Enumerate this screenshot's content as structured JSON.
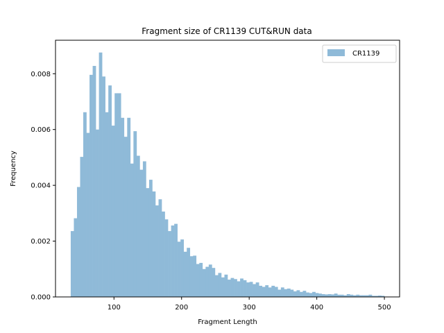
{
  "chart_data": {
    "type": "bar",
    "title": "Fragment size of CR1139 CUT&RUN data",
    "xlabel": "Fragment Length",
    "ylabel": "Frequency",
    "xlim": [
      13.5,
      522.5
    ],
    "ylim": [
      0.0,
      0.0092
    ],
    "xticks": [
      100,
      200,
      300,
      400,
      500
    ],
    "xtick_labels": [
      "100",
      "200",
      "300",
      "400",
      "500"
    ],
    "yticks": [
      0.0,
      0.002,
      0.004,
      0.006,
      0.008
    ],
    "ytick_labels": [
      "0.000",
      "0.002",
      "0.004",
      "0.006",
      "0.008"
    ],
    "bin_start": 36,
    "bin_width": 4.64,
    "grid": false,
    "legend_position": "top-right",
    "series": [
      {
        "name": "CR1139",
        "color": "#8fbad8",
        "values": [
          0.00236,
          0.00282,
          0.00394,
          0.00502,
          0.00662,
          0.00588,
          0.00796,
          0.00828,
          0.006,
          0.00876,
          0.0079,
          0.00662,
          0.00758,
          0.00614,
          0.0073,
          0.0073,
          0.00642,
          0.00574,
          0.00642,
          0.00478,
          0.00594,
          0.00506,
          0.00456,
          0.00486,
          0.0039,
          0.0042,
          0.00378,
          0.00328,
          0.0035,
          0.00306,
          0.00278,
          0.00236,
          0.00256,
          0.00262,
          0.00198,
          0.00206,
          0.00162,
          0.00176,
          0.00146,
          0.00148,
          0.00118,
          0.00122,
          0.001,
          0.00108,
          0.00116,
          0.00104,
          0.00078,
          0.00086,
          0.0007,
          0.0008,
          0.00062,
          0.00068,
          0.00064,
          0.00056,
          0.00066,
          0.0006,
          0.00052,
          0.00054,
          0.00046,
          0.00052,
          0.0004,
          0.00036,
          0.00042,
          0.00034,
          0.0004,
          0.00036,
          0.00026,
          0.00034,
          0.00028,
          0.0003,
          0.00026,
          0.0002,
          0.00024,
          0.00018,
          0.00022,
          0.00016,
          0.00014,
          0.00018,
          0.00014,
          0.00012,
          0.0001,
          9e-05,
          0.0001,
          9e-05,
          0.00012,
          8e-05,
          8e-05,
          6e-05,
          0.0001,
          8e-05,
          6e-05,
          8e-05,
          6e-05,
          6e-05,
          6e-05,
          8e-05,
          4e-05,
          4e-05,
          5e-05,
          4e-05
        ]
      }
    ]
  }
}
